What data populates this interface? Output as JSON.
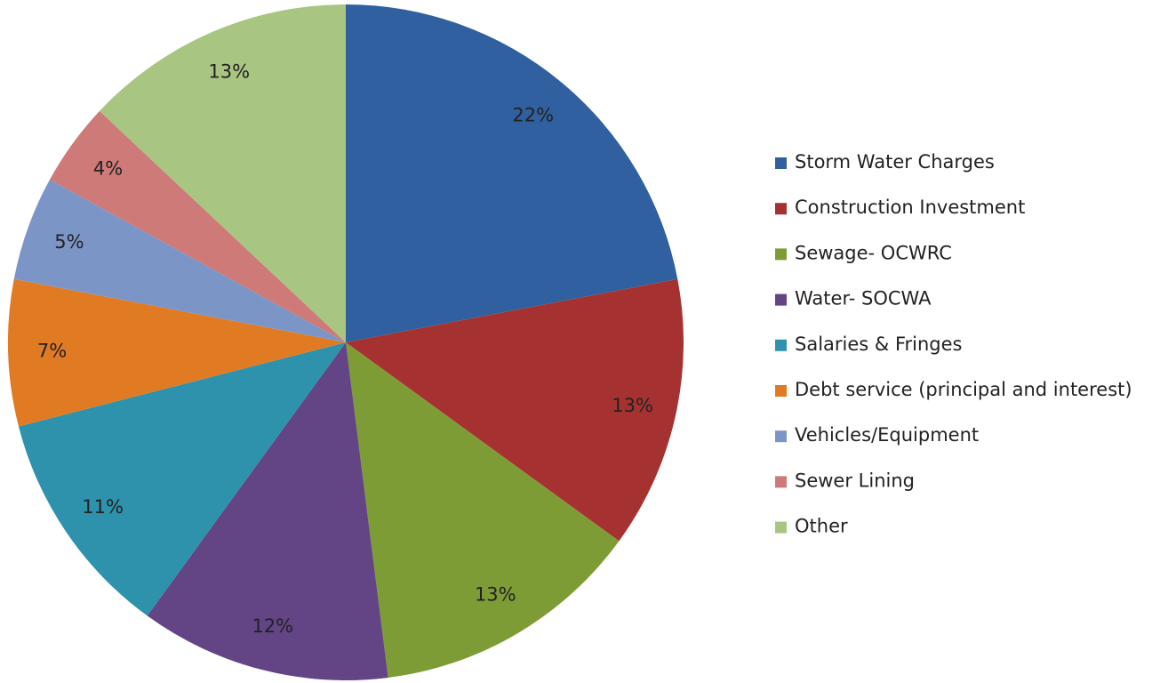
{
  "chart_data": {
    "type": "pie",
    "categories": [
      "Storm Water Charges",
      "Construction Investment",
      "Sewage- OCWRC",
      "Water- SOCWA",
      "Salaries & Fringes",
      "Debt service (principal and interest)",
      "Vehicles/Equipment",
      "Sewer Lining",
      "Other"
    ],
    "values": [
      22,
      13,
      13,
      12,
      11,
      7,
      5,
      4,
      13
    ],
    "value_labels": [
      "22%",
      "13%",
      "13%",
      "12%",
      "11%",
      "7%",
      "5%",
      "4%",
      "13%"
    ],
    "colors": [
      "#30609f",
      "#a53230",
      "#7e9c36",
      "#634484",
      "#2e92ac",
      "#e07b24",
      "#7c95c7",
      "#cd7a78",
      "#a9c582"
    ],
    "legend": "right"
  }
}
